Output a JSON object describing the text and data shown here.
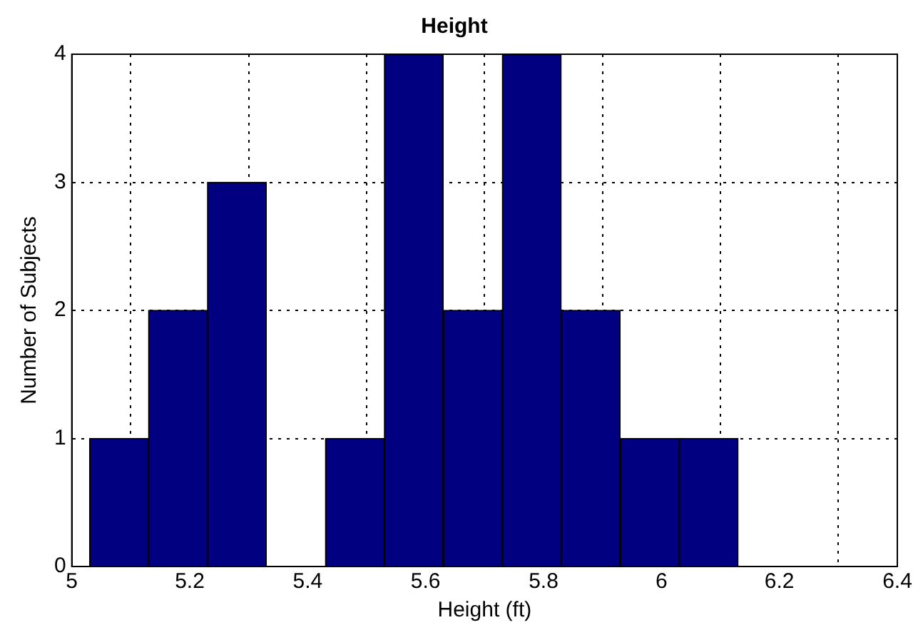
{
  "chart_data": {
    "type": "histogram",
    "title": "Height",
    "xlabel": "Height (ft)",
    "ylabel": "Number of Subjects",
    "bins": [
      5.03,
      5.13,
      5.23,
      5.33,
      5.43,
      5.53,
      5.63,
      5.73,
      5.83,
      5.93,
      6.03,
      6.13
    ],
    "values": [
      1,
      2,
      3,
      0,
      1,
      4,
      2,
      4,
      2,
      1,
      1
    ],
    "color": "#000080",
    "xlim": [
      5,
      6.4
    ],
    "xticks": [
      5,
      5.2,
      5.4,
      5.6,
      5.8,
      6,
      6.2,
      6.4
    ],
    "ylim": [
      0,
      4
    ],
    "yticks": [
      0,
      1,
      2,
      3,
      4
    ],
    "grid": true
  }
}
